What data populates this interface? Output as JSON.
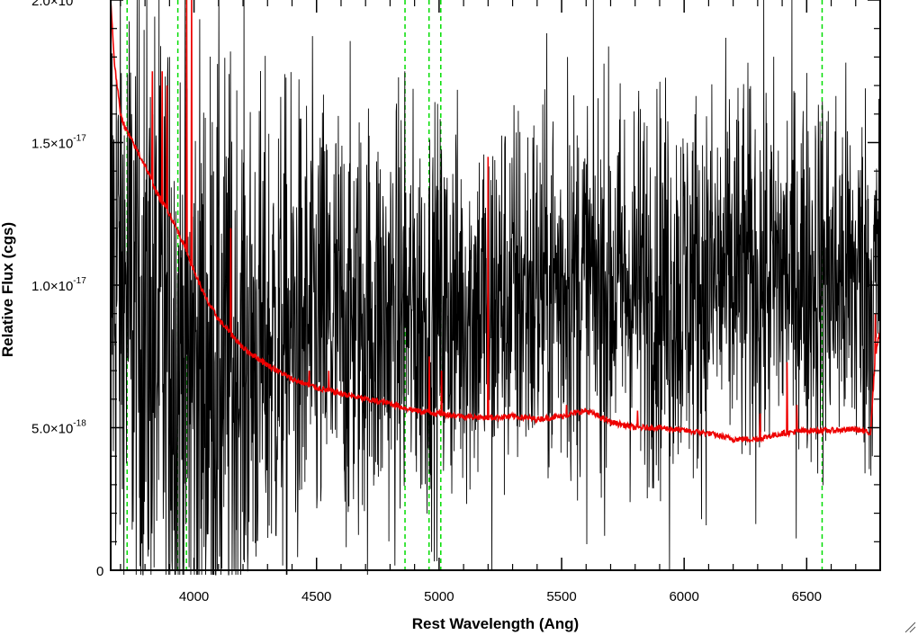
{
  "chart_data": {
    "type": "line",
    "xlabel": "Rest Wavelength (Ang)",
    "ylabel": "Relative Flux (cgs)",
    "xlim": [
      3660,
      6800
    ],
    "ylim": [
      0,
      2e-17
    ],
    "x_ticks": [
      {
        "value": 4000,
        "label": "4000"
      },
      {
        "value": 4500,
        "label": "4500"
      },
      {
        "value": 5000,
        "label": "5000"
      },
      {
        "value": 5500,
        "label": "5500"
      },
      {
        "value": 6000,
        "label": "6000"
      },
      {
        "value": 6500,
        "label": "6500"
      }
    ],
    "y_ticks": [
      {
        "value": 0,
        "mantissa": "0",
        "exponent": ""
      },
      {
        "value": 5e-18,
        "mantissa": "5.0×10",
        "exponent": "-18"
      },
      {
        "value": 1e-17,
        "mantissa": "1.0×10",
        "exponent": "-17"
      },
      {
        "value": 1.5e-17,
        "mantissa": "1.5×10",
        "exponent": "-17"
      },
      {
        "value": 2e-17,
        "mantissa": "2.0×10",
        "exponent": "-17"
      }
    ],
    "reference_lines": {
      "color": "#00dd00",
      "style": "dashed",
      "x": [
        3727,
        3934,
        3969,
        4861,
        4959,
        5007,
        6563
      ]
    },
    "series": [
      {
        "color": "#000000",
        "style": "noisy spectrum",
        "anchors": [
          [
            3660,
            1.1e-17
          ],
          [
            3700,
            1e-17
          ],
          [
            3800,
            8.5e-18
          ],
          [
            3900,
            7.5e-18
          ],
          [
            4000,
            6.8e-18
          ],
          [
            4200,
            7.5e-18
          ],
          [
            4500,
            8.5e-18
          ],
          [
            5000,
            9e-18
          ],
          [
            5500,
            1e-17
          ],
          [
            6000,
            1e-17
          ],
          [
            6500,
            1.05e-17
          ],
          [
            6800,
            1e-17
          ]
        ],
        "noise_sigma": [
          [
            3660,
            6e-18
          ],
          [
            4000,
            6e-18
          ],
          [
            4300,
            4.5e-18
          ],
          [
            5000,
            3.5e-18
          ],
          [
            6000,
            3.5e-18
          ],
          [
            6800,
            3.5e-18
          ]
        ],
        "spikes": [
          [
            3900,
            1.8e-17
          ],
          [
            4860,
            1.75e-17
          ],
          [
            5525,
            1.8e-17
          ],
          [
            5940,
            0.0
          ],
          [
            5215,
            0.0
          ],
          [
            4163,
            0.0
          ]
        ]
      },
      {
        "color": "#ee0000",
        "style": "model continuum",
        "points": [
          [
            3660,
            2e-17
          ],
          [
            3675,
            1.78e-17
          ],
          [
            3700,
            1.6e-17
          ],
          [
            3720,
            1.55e-17
          ],
          [
            3750,
            1.5e-17
          ],
          [
            3800,
            1.42e-17
          ],
          [
            3850,
            1.32e-17
          ],
          [
            3900,
            1.25e-17
          ],
          [
            3950,
            1.16e-17
          ],
          [
            4000,
            1.05e-17
          ],
          [
            4050,
            9.5e-18
          ],
          [
            4100,
            8.8e-18
          ],
          [
            4200,
            7.8e-18
          ],
          [
            4300,
            7.2e-18
          ],
          [
            4400,
            6.7e-18
          ],
          [
            4500,
            6.4e-18
          ],
          [
            4600,
            6.2e-18
          ],
          [
            4700,
            6e-18
          ],
          [
            4800,
            5.85e-18
          ],
          [
            4900,
            5.6e-18
          ],
          [
            5000,
            5.5e-18
          ],
          [
            5100,
            5.4e-18
          ],
          [
            5200,
            5.35e-18
          ],
          [
            5300,
            5.4e-18
          ],
          [
            5400,
            5.3e-18
          ],
          [
            5500,
            5.4e-18
          ],
          [
            5600,
            5.6e-18
          ],
          [
            5700,
            5.2e-18
          ],
          [
            5800,
            5e-18
          ],
          [
            5900,
            5e-18
          ],
          [
            6000,
            4.9e-18
          ],
          [
            6100,
            4.8e-18
          ],
          [
            6200,
            4.6e-18
          ],
          [
            6300,
            4.6e-18
          ],
          [
            6400,
            4.8e-18
          ],
          [
            6500,
            4.9e-18
          ],
          [
            6600,
            4.9e-18
          ],
          [
            6700,
            4.95e-18
          ],
          [
            6760,
            4.8e-18
          ],
          [
            6780,
            7.5e-18
          ],
          [
            6800,
            8.5e-18
          ]
        ],
        "emission_spikes": [
          [
            3830,
            1.75e-17
          ],
          [
            3870,
            1.75e-17
          ],
          [
            3890,
            1.7e-17
          ],
          [
            3935,
            2.1e-17
          ],
          [
            3970,
            2.1e-17
          ],
          [
            3990,
            2e-17
          ],
          [
            4150,
            1.2e-17
          ],
          [
            4470,
            7e-18
          ],
          [
            4550,
            7e-18
          ],
          [
            4715,
            7.5e-18
          ],
          [
            4960,
            7.5e-18
          ],
          [
            5010,
            7e-18
          ],
          [
            5200,
            1.45e-17
          ],
          [
            5520,
            5.8e-18
          ],
          [
            5810,
            5.6e-18
          ],
          [
            6310,
            5.5e-18
          ],
          [
            6420,
            7.3e-18
          ],
          [
            6460,
            5.8e-18
          ],
          [
            6780,
            9e-18
          ]
        ]
      }
    ]
  }
}
